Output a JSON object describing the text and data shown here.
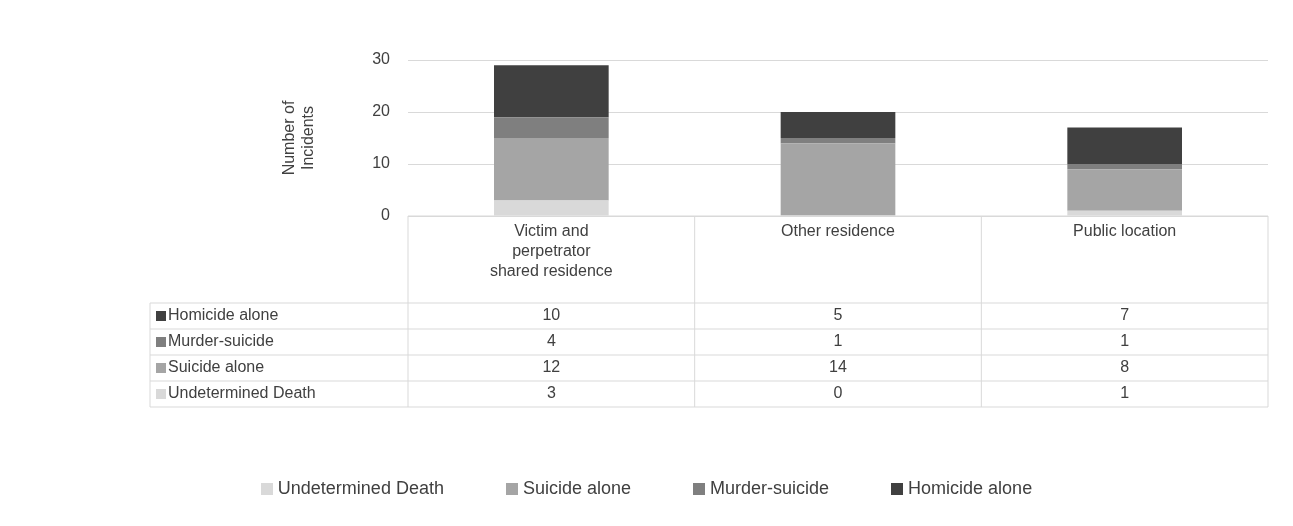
{
  "chart_data": {
    "type": "bar",
    "stacked": true,
    "ylabel": "Number of Incidents",
    "categories": [
      "Victim and perpetrator shared residence",
      "Other residence",
      "Public location"
    ],
    "series": [
      {
        "name": "Undetermined Death",
        "color": "#d9d9d9",
        "values": [
          3,
          0,
          1
        ]
      },
      {
        "name": "Suicide alone",
        "color": "#a5a5a5",
        "values": [
          12,
          14,
          8
        ]
      },
      {
        "name": "Murder-suicide",
        "color": "#7f7f7f",
        "values": [
          4,
          1,
          1
        ]
      },
      {
        "name": "Homicide alone",
        "color": "#404040",
        "values": [
          10,
          5,
          7
        ]
      }
    ],
    "ylim": [
      0,
      30
    ],
    "yticks": [
      0,
      10,
      20,
      30
    ],
    "grid": "y",
    "legend": "bottom",
    "data_labels": true
  }
}
